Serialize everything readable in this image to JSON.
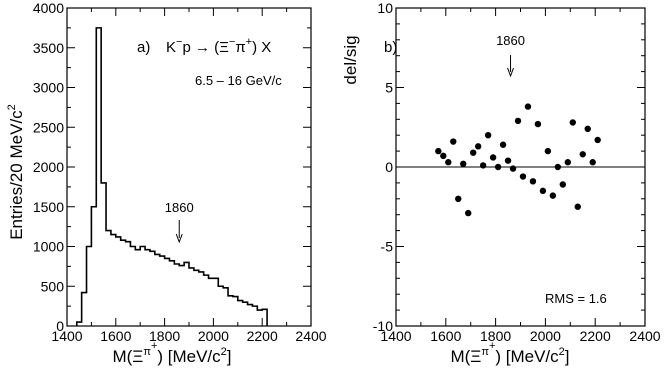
{
  "chart_data": [
    {
      "type": "bar",
      "style": "histogram",
      "panel_label": "a)",
      "reaction": {
        "a": "K",
        "b": "p → (Ξ",
        "c": "π",
        "d": ") X"
      },
      "momentum_label": "6.5 – 16 GeV/c",
      "annotation": {
        "label": "1860",
        "x": 1860
      },
      "xlabel": {
        "a": "M(Ξ",
        "b": "π",
        "c": ")  [MeV/c",
        "d": "]"
      },
      "ylabel": {
        "a": "Entries/20 MeV/c",
        "b": "2"
      },
      "xlim": [
        1400,
        2400
      ],
      "ylim": [
        0,
        4000
      ],
      "xticks": [
        "1400",
        "1600",
        "1800",
        "2000",
        "2200",
        "2400"
      ],
      "yticks": [
        "0",
        "500",
        "1000",
        "1500",
        "2000",
        "2500",
        "3000",
        "3500",
        "4000"
      ],
      "bin_edges": [
        1440,
        1460,
        1480,
        1500,
        1520,
        1540,
        1560,
        1580,
        1600,
        1620,
        1640,
        1660,
        1680,
        1700,
        1720,
        1740,
        1760,
        1780,
        1800,
        1820,
        1840,
        1860,
        1880,
        1900,
        1920,
        1940,
        1960,
        1980,
        2000,
        2020,
        2040,
        2060,
        2080,
        2100,
        2120,
        2140,
        2160,
        2180,
        2200,
        2220
      ],
      "values": [
        50,
        420,
        1000,
        1500,
        3750,
        1800,
        1200,
        1150,
        1120,
        1080,
        1060,
        1000,
        960,
        1000,
        960,
        940,
        900,
        880,
        850,
        820,
        780,
        760,
        800,
        730,
        700,
        680,
        640,
        600,
        600,
        500,
        480,
        380,
        370,
        320,
        300,
        270,
        250,
        200,
        210
      ]
    },
    {
      "type": "scatter",
      "panel_label": "b)",
      "annotation": {
        "label": "1860",
        "x": 1860
      },
      "summary": "RMS = 1.6",
      "xlabel": {
        "a": "M(Ξ",
        "b": "π",
        "c": ")  [MeV/c",
        "d": "]"
      },
      "ylabel": "del/sig",
      "xlim": [
        1400,
        2400
      ],
      "ylim": [
        -10,
        10
      ],
      "xticks": [
        "1400",
        "1600",
        "1800",
        "2000",
        "2200",
        "2400"
      ],
      "yticks": [
        "-10",
        "-5",
        "0",
        "5",
        "10"
      ],
      "x": [
        1570,
        1590,
        1610,
        1630,
        1650,
        1670,
        1690,
        1710,
        1730,
        1750,
        1770,
        1790,
        1810,
        1830,
        1850,
        1870,
        1890,
        1910,
        1930,
        1950,
        1970,
        1990,
        2010,
        2030,
        2050,
        2070,
        2090,
        2110,
        2130,
        2150,
        2170,
        2190,
        2210
      ],
      "y": [
        1.0,
        0.7,
        0.3,
        1.6,
        -2.0,
        0.2,
        -2.9,
        0.9,
        1.3,
        0.1,
        2.0,
        0.6,
        0.0,
        1.4,
        0.4,
        -0.1,
        2.9,
        -0.6,
        3.8,
        -0.9,
        2.7,
        -1.5,
        1.0,
        -1.8,
        0.0,
        -1.1,
        0.3,
        2.8,
        -2.5,
        0.8,
        2.4,
        0.3,
        1.7
      ]
    }
  ]
}
